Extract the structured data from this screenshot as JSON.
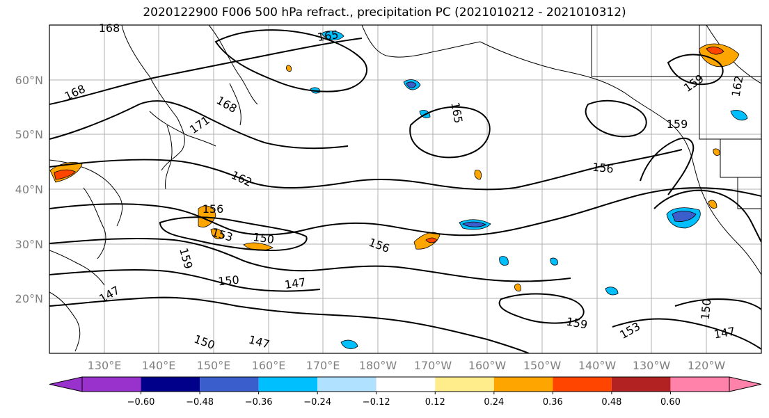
{
  "title": "2020122900 F006 500 hPa refract., precipitation PC (2021010212 - 2021010312)",
  "lat_labels": [
    "60°N",
    "50°N",
    "40°N",
    "30°N",
    "20°N"
  ],
  "lon_labels": [
    "130°E",
    "140°E",
    "150°E",
    "160°E",
    "170°E",
    "180°W",
    "170°W",
    "160°W",
    "150°W",
    "140°W",
    "130°W",
    "120°W"
  ],
  "contour_labels": [
    "168",
    "165",
    "168",
    "168",
    "171",
    "165",
    "162",
    "156",
    "153",
    "150",
    "156",
    "159",
    "150",
    "147",
    "156",
    "159",
    "162",
    "159",
    "147",
    "150",
    "147",
    "153",
    "150",
    "147",
    "159"
  ],
  "colorbar": {
    "ticks": [
      "−0.60",
      "−0.48",
      "−0.36",
      "−0.24",
      "−0.12",
      "0.12",
      "0.24",
      "0.36",
      "0.48",
      "0.60"
    ],
    "colors": [
      "#9932cc",
      "#00008b",
      "#3a5fcd",
      "#00bfff",
      "#b0e2ff",
      "#ffffff",
      "#ffec8b",
      "#ffa500",
      "#ff4500",
      "#b22222",
      "#ff82ab",
      "#ff82ab"
    ]
  }
}
